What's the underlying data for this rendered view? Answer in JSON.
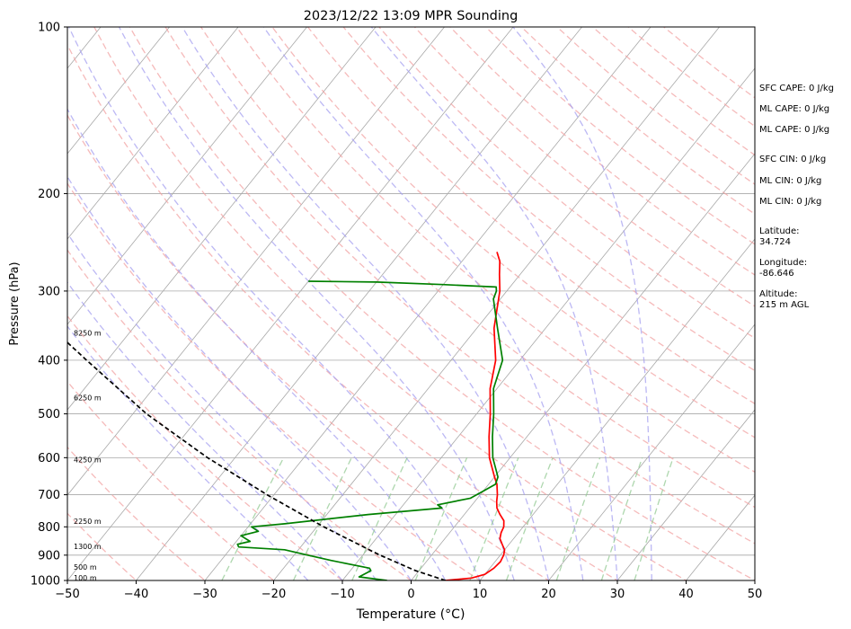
{
  "chart_data": {
    "type": "line",
    "title": "2023/12/22 13:09 MPR Sounding",
    "xlabel": "Temperature (°C)",
    "ylabel": "Pressure (hPa)",
    "xlim": [
      -50,
      50
    ],
    "ylim": [
      1000,
      100
    ],
    "y_scale": "log",
    "grid": true,
    "x_ticks": [
      -50,
      -40,
      -30,
      -20,
      -10,
      0,
      10,
      20,
      30,
      40,
      50
    ],
    "y_ticks": [
      1000,
      900,
      800,
      700,
      600,
      500,
      400,
      300,
      200,
      100
    ],
    "series": [
      {
        "type": "temperature",
        "color": "#ff0000",
        "points": [
          [
            1000,
            5
          ],
          [
            990,
            8.5
          ],
          [
            975,
            10
          ],
          [
            950,
            10.6
          ],
          [
            925,
            10.8
          ],
          [
            900,
            10.5
          ],
          [
            880,
            10
          ],
          [
            860,
            9
          ],
          [
            840,
            8
          ],
          [
            820,
            7.5
          ],
          [
            800,
            7.2
          ],
          [
            780,
            6.5
          ],
          [
            760,
            5.2
          ],
          [
            740,
            4
          ],
          [
            720,
            3.2
          ],
          [
            700,
            2.5
          ],
          [
            670,
            1.2
          ],
          [
            650,
            0
          ],
          [
            600,
            -3
          ],
          [
            550,
            -5.5
          ],
          [
            500,
            -8
          ],
          [
            450,
            -11
          ],
          [
            400,
            -13.5
          ],
          [
            350,
            -17.5
          ],
          [
            300,
            -21
          ],
          [
            280,
            -23
          ],
          [
            265,
            -24.5
          ],
          [
            255,
            -26
          ]
        ]
      },
      {
        "type": "dewpoint",
        "color": "#008000",
        "points": [
          [
            1000,
            -3.5
          ],
          [
            985,
            -8
          ],
          [
            960,
            -7
          ],
          [
            950,
            -7.5
          ],
          [
            920,
            -14
          ],
          [
            900,
            -18
          ],
          [
            880,
            -22
          ],
          [
            870,
            -29
          ],
          [
            860,
            -29.5
          ],
          [
            850,
            -28
          ],
          [
            830,
            -30
          ],
          [
            815,
            -28
          ],
          [
            800,
            -29.5
          ],
          [
            790,
            -25
          ],
          [
            760,
            -14
          ],
          [
            740,
            -4
          ],
          [
            730,
            -5
          ],
          [
            710,
            -1
          ],
          [
            690,
            0
          ],
          [
            670,
            1
          ],
          [
            650,
            0.5
          ],
          [
            600,
            -2.5
          ],
          [
            550,
            -5
          ],
          [
            500,
            -7.5
          ],
          [
            450,
            -10.5
          ],
          [
            400,
            -12.5
          ],
          [
            350,
            -17
          ],
          [
            310,
            -21
          ],
          [
            300,
            -21.5
          ],
          [
            295,
            -22
          ],
          [
            292,
            -30
          ],
          [
            289,
            -40
          ],
          [
            288,
            -50
          ]
        ]
      },
      {
        "type": "parcel",
        "color": "#000000",
        "dash": true,
        "points": [
          [
            1000,
            5
          ],
          [
            960,
            -0.5
          ],
          [
            900,
            -7.5
          ],
          [
            800,
            -19
          ],
          [
            700,
            -31
          ],
          [
            600,
            -44
          ],
          [
            500,
            -58
          ],
          [
            400,
            -73
          ],
          [
            300,
            -92
          ],
          [
            275,
            -98
          ]
        ]
      }
    ],
    "height_labels": [
      {
        "label": "100 m",
        "pressure": 988
      },
      {
        "label": "500 m",
        "pressure": 945
      },
      {
        "label": "1300 m",
        "pressure": 867
      },
      {
        "label": "2250 m",
        "pressure": 781
      },
      {
        "label": "4250 m",
        "pressure": 605
      },
      {
        "label": "6250 m",
        "pressure": 467
      },
      {
        "label": "8250 m",
        "pressure": 357
      }
    ],
    "dry_adiabat_thetas": [
      -50,
      -40,
      -30,
      -20,
      -10,
      0,
      10,
      20,
      30,
      40,
      50,
      60,
      70,
      80,
      90,
      100,
      110,
      120,
      130,
      140,
      150,
      160,
      170,
      180,
      190,
      200
    ],
    "moist_adiabat_starts": [
      -15,
      -10,
      -5,
      0,
      5,
      10,
      15,
      20,
      25,
      30,
      35
    ],
    "mixing_ratios": [
      0.4,
      1,
      2,
      4,
      7,
      10,
      16,
      24,
      32
    ],
    "colors": {
      "temperature": "#ff0000",
      "dewpoint": "#008000",
      "parcel": "#000000",
      "dry_adiabat": "#f2a3a3",
      "moist_adiabat": "#a6a0f0",
      "mixing_ratio": "#93c993",
      "isotherm": "#a8a8a8"
    }
  },
  "info": {
    "sfc_cape": "SFC CAPE: 0 J/kg",
    "ml_cape": "ML CAPE: 0 J/kg",
    "ml_cape_2": "ML CAPE: 0 J/kg",
    "sfc_cin": "SFC CIN: 0 J/kg",
    "ml_cin": "ML CIN: 0 J/kg",
    "ml_cin_2": "ML CIN: 0 J/kg",
    "latitude_label": "Latitude:",
    "latitude": "34.724",
    "longitude_label": "Longitude:",
    "longitude": "-86.646",
    "altitude_label": "Altitude:",
    "altitude": "215 m AGL"
  }
}
